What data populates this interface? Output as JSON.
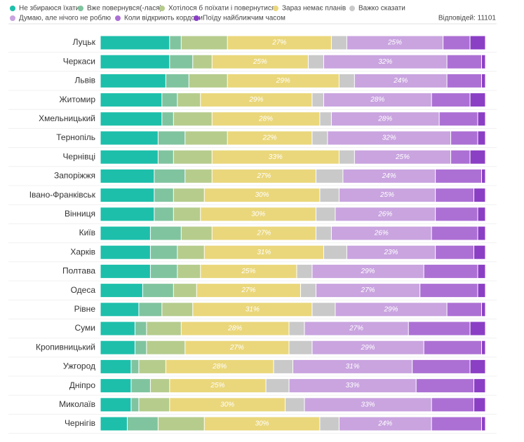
{
  "chart_data": {
    "type": "stacked-bar-percent",
    "responses": "Відповідей: 11101",
    "categories": [
      "Луцьк",
      "Черкаси",
      "Львів",
      "Житомир",
      "Хмельницький",
      "Тернопіль",
      "Чернівці",
      "Запоріжжя",
      "Івано-Франківськ",
      "Вінниця",
      "Київ",
      "Харків",
      "Полтава",
      "Одеса",
      "Рівне",
      "Суми",
      "Кропивницький",
      "Ужгород",
      "Дніпро",
      "Миколаїв",
      "Чернігів"
    ],
    "series": [
      {
        "name": "Не збираюся їхати",
        "color": "#1dbfaa",
        "values": [
          18,
          18,
          17,
          16,
          16,
          15,
          15,
          14,
          14,
          14,
          13,
          13,
          13,
          11,
          10,
          9,
          9,
          8,
          8,
          8,
          7
        ]
      },
      {
        "name": "Вже повернувся(-лася)",
        "color": "#80c49f",
        "values": [
          3,
          6,
          6,
          4,
          3,
          7,
          4,
          8,
          5,
          5,
          8,
          7,
          7,
          8,
          6,
          3,
          3,
          2,
          5,
          2,
          8
        ]
      },
      {
        "name": "Хотілося б поїхати і повернутися",
        "color": "#b6cc8d",
        "values": [
          12,
          5,
          10,
          6,
          10,
          11,
          10,
          7,
          8,
          7,
          8,
          7,
          6,
          6,
          8,
          9,
          10,
          7,
          5,
          8,
          12
        ]
      },
      {
        "name": "Зараз немає планів",
        "color": "#ead77b",
        "values": [
          27,
          25,
          29,
          29,
          28,
          22,
          33,
          27,
          30,
          30,
          27,
          31,
          25,
          27,
          31,
          28,
          27,
          28,
          25,
          30,
          30
        ],
        "value_labels": [
          "27%",
          "25%",
          "29%",
          "29%",
          "28%",
          "22%",
          "33%",
          "27%",
          "30%",
          "30%",
          "27%",
          "31%",
          "25%",
          "27%",
          "31%",
          "28%",
          "27%",
          "28%",
          "25%",
          "30%",
          "30%"
        ]
      },
      {
        "name": "Важко сказати",
        "color": "#c9c9c9",
        "values": [
          4,
          4,
          4,
          3,
          3,
          4,
          4,
          7,
          5,
          5,
          4,
          6,
          4,
          4,
          6,
          4,
          6,
          5,
          6,
          5,
          5
        ]
      },
      {
        "name": "Думаю, але нічого не роблю",
        "color": "#c9a4df",
        "values": [
          25,
          32,
          24,
          28,
          28,
          32,
          25,
          24,
          25,
          26,
          26,
          23,
          29,
          27,
          29,
          27,
          29,
          31,
          33,
          33,
          24
        ],
        "value_labels": [
          "25%",
          "32%",
          "24%",
          "28%",
          "28%",
          "32%",
          "25%",
          "24%",
          "25%",
          "26%",
          "26%",
          "23%",
          "29%",
          "27%",
          "29%",
          "27%",
          "29%",
          "31%",
          "33%",
          "33%",
          "24%"
        ]
      },
      {
        "name": "Коли відкриють кордони",
        "color": "#ac70d4",
        "values": [
          7,
          9,
          9,
          10,
          10,
          7,
          5,
          12,
          10,
          11,
          12,
          10,
          14,
          15,
          9,
          16,
          15,
          15,
          15,
          11,
          13
        ]
      },
      {
        "name": "Поїду найближчим часом",
        "color": "#8b3fc5",
        "values": [
          4,
          1,
          1,
          4,
          2,
          2,
          4,
          1,
          3,
          2,
          2,
          3,
          2,
          2,
          1,
          4,
          1,
          4,
          3,
          3,
          1
        ]
      }
    ]
  }
}
